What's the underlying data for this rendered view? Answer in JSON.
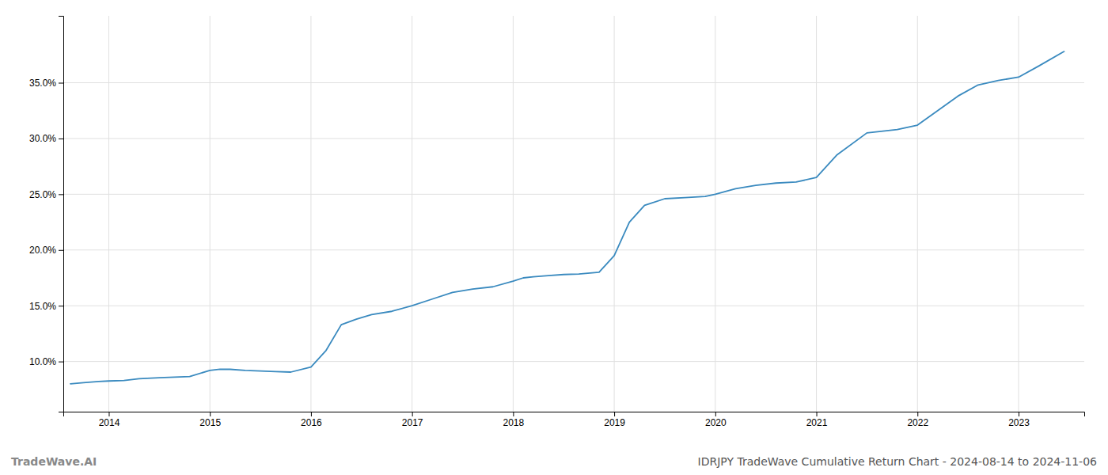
{
  "chart_data": {
    "type": "line",
    "title": "IDRJPY TradeWave Cumulative Return Chart - 2024-08-14 to 2024-11-06",
    "annotations": [
      "TradeWave.AI"
    ],
    "color": "#3a8abf",
    "grid": true,
    "x": [
      2013.62,
      2013.75,
      2013.9,
      2014.0,
      2014.15,
      2014.3,
      2014.5,
      2014.65,
      2014.8,
      2015.0,
      2015.1,
      2015.2,
      2015.35,
      2015.5,
      2015.65,
      2015.8,
      2016.0,
      2016.15,
      2016.3,
      2016.45,
      2016.6,
      2016.8,
      2017.0,
      2017.2,
      2017.4,
      2017.6,
      2017.8,
      2018.0,
      2018.1,
      2018.2,
      2018.35,
      2018.5,
      2018.65,
      2018.85,
      2019.0,
      2019.15,
      2019.3,
      2019.5,
      2019.7,
      2019.9,
      2020.0,
      2020.2,
      2020.4,
      2020.6,
      2020.8,
      2021.0,
      2021.2,
      2021.5,
      2021.8,
      2022.0,
      2022.2,
      2022.4,
      2022.6,
      2022.8,
      2023.0,
      2023.2,
      2023.45
    ],
    "values": [
      8.0,
      8.1,
      8.2,
      8.25,
      8.3,
      8.45,
      8.55,
      8.6,
      8.65,
      9.2,
      9.3,
      9.3,
      9.2,
      9.15,
      9.1,
      9.05,
      9.5,
      11.0,
      13.3,
      13.8,
      14.2,
      14.5,
      15.0,
      15.6,
      16.2,
      16.5,
      16.7,
      17.2,
      17.5,
      17.6,
      17.7,
      17.8,
      17.85,
      18.0,
      19.5,
      22.5,
      24.0,
      24.6,
      24.7,
      24.8,
      25.0,
      25.5,
      25.8,
      26.0,
      26.1,
      26.5,
      28.5,
      30.5,
      30.8,
      31.2,
      32.5,
      33.8,
      34.8,
      35.2,
      35.5,
      36.5,
      37.8
    ],
    "xlim": [
      2013.55,
      2023.65
    ],
    "xticks": [
      2014,
      2015,
      2016,
      2017,
      2018,
      2019,
      2020,
      2021,
      2022,
      2023
    ],
    "ylim": [
      5.5,
      41.0
    ],
    "yticks": [
      {
        "value": 10.0,
        "label": "10.0%"
      },
      {
        "value": 15.0,
        "label": "15.0%"
      },
      {
        "value": 20.0,
        "label": "20.0%"
      },
      {
        "value": 25.0,
        "label": "25.0%"
      },
      {
        "value": 30.0,
        "label": "30.0%"
      },
      {
        "value": 35.0,
        "label": "35.0%"
      }
    ]
  }
}
